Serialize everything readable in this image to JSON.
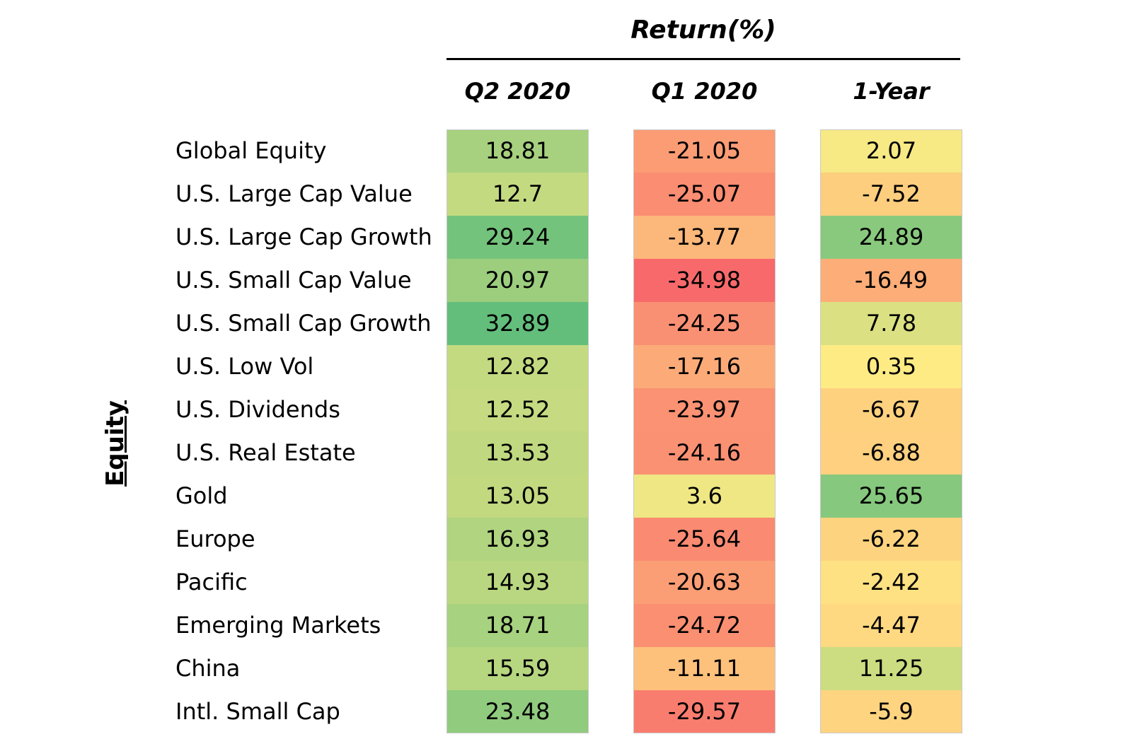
{
  "chart_data": {
    "type": "heatmap",
    "title": "Return(%)",
    "group_label": "Equity",
    "columns": [
      "Q2 2020",
      "Q1 2020",
      "1-Year"
    ],
    "rows": [
      {
        "label": "Global Equity",
        "values": [
          18.81,
          -21.05,
          2.07
        ],
        "display": [
          "18.81",
          "-21.05",
          "2.07"
        ]
      },
      {
        "label": "U.S. Large Cap Value",
        "values": [
          12.7,
          -25.07,
          -7.52
        ],
        "display": [
          "12.7",
          "-25.07",
          "-7.52"
        ]
      },
      {
        "label": "U.S. Large Cap Growth",
        "values": [
          29.24,
          -13.77,
          24.89
        ],
        "display": [
          "29.24",
          "-13.77",
          "24.89"
        ]
      },
      {
        "label": "U.S. Small Cap Value",
        "values": [
          20.97,
          -34.98,
          -16.49
        ],
        "display": [
          "20.97",
          "-34.98",
          "-16.49"
        ]
      },
      {
        "label": "U.S. Small Cap Growth",
        "values": [
          32.89,
          -24.25,
          7.78
        ],
        "display": [
          "32.89",
          "-24.25",
          "7.78"
        ]
      },
      {
        "label": "U.S. Low Vol",
        "values": [
          12.82,
          -17.16,
          0.35
        ],
        "display": [
          "12.82",
          "-17.16",
          "0.35"
        ]
      },
      {
        "label": "U.S. Dividends",
        "values": [
          12.52,
          -23.97,
          -6.67
        ],
        "display": [
          "12.52",
          "-23.97",
          "-6.67"
        ]
      },
      {
        "label": "U.S. Real Estate",
        "values": [
          13.53,
          -24.16,
          -6.88
        ],
        "display": [
          "13.53",
          "-24.16",
          "-6.88"
        ]
      },
      {
        "label": "Gold",
        "values": [
          13.05,
          3.6,
          25.65
        ],
        "display": [
          "13.05",
          "3.6",
          "25.65"
        ]
      },
      {
        "label": "Europe",
        "values": [
          16.93,
          -25.64,
          -6.22
        ],
        "display": [
          "16.93",
          "-25.64",
          "-6.22"
        ]
      },
      {
        "label": "Pacific",
        "values": [
          14.93,
          -20.63,
          -2.42
        ],
        "display": [
          "14.93",
          "-20.63",
          "-2.42"
        ]
      },
      {
        "label": "Emerging Markets",
        "values": [
          18.71,
          -24.72,
          -4.47
        ],
        "display": [
          "18.71",
          "-24.72",
          "-4.47"
        ]
      },
      {
        "label": "China",
        "values": [
          15.59,
          -11.11,
          11.25
        ],
        "display": [
          "15.59",
          "-11.11",
          "11.25"
        ]
      },
      {
        "label": "Intl. Small Cap",
        "values": [
          23.48,
          -29.57,
          -5.9
        ],
        "display": [
          "23.48",
          "-29.57",
          "-5.9"
        ]
      }
    ],
    "color_scale": {
      "low": "#f8696b",
      "mid": "#ffeb84",
      "high": "#63be7b"
    },
    "grid": false
  }
}
